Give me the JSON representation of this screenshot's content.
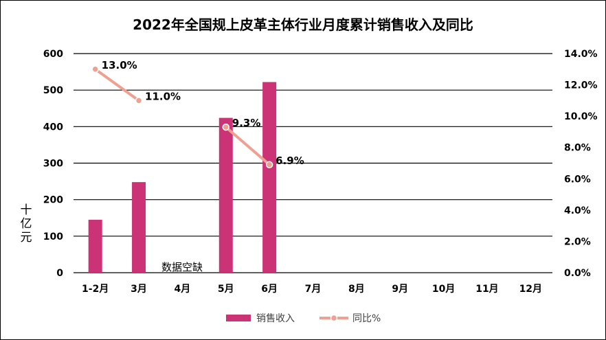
{
  "chart_data": {
    "type": "bar",
    "title": "2022年全国规上皮革主体行业月度累计销售收入及同比",
    "categories": [
      "1-2月",
      "3月",
      "4月",
      "5月",
      "6月",
      "7月",
      "8月",
      "9月",
      "10月",
      "11月",
      "12月"
    ],
    "series": [
      {
        "name": "销售收入",
        "type": "bar",
        "axis": "left",
        "color": "#cc3377",
        "values": [
          145,
          248,
          null,
          424,
          522,
          null,
          null,
          null,
          null,
          null,
          null
        ]
      },
      {
        "name": "同比%",
        "type": "line",
        "axis": "right",
        "color": "#f0a090",
        "values": [
          13.0,
          11.0,
          null,
          9.3,
          6.9,
          null,
          null,
          null,
          null,
          null,
          null
        ],
        "labels": [
          "13.0%",
          "11.0%",
          "",
          "9.3%",
          "6.9%",
          "",
          "",
          "",
          "",
          "",
          ""
        ]
      }
    ],
    "ylabel": "十亿元",
    "ylim": [
      0,
      600
    ],
    "yticks": [
      "0",
      "100",
      "200",
      "300",
      "400",
      "500",
      "600"
    ],
    "y2lim": [
      0,
      14
    ],
    "y2ticks": [
      "0.0%",
      "2.0%",
      "4.0%",
      "6.0%",
      "8.0%",
      "10.0%",
      "12.0%",
      "14.0%"
    ],
    "annotation": "数据空缺",
    "grid": true,
    "legend": "bottom"
  }
}
